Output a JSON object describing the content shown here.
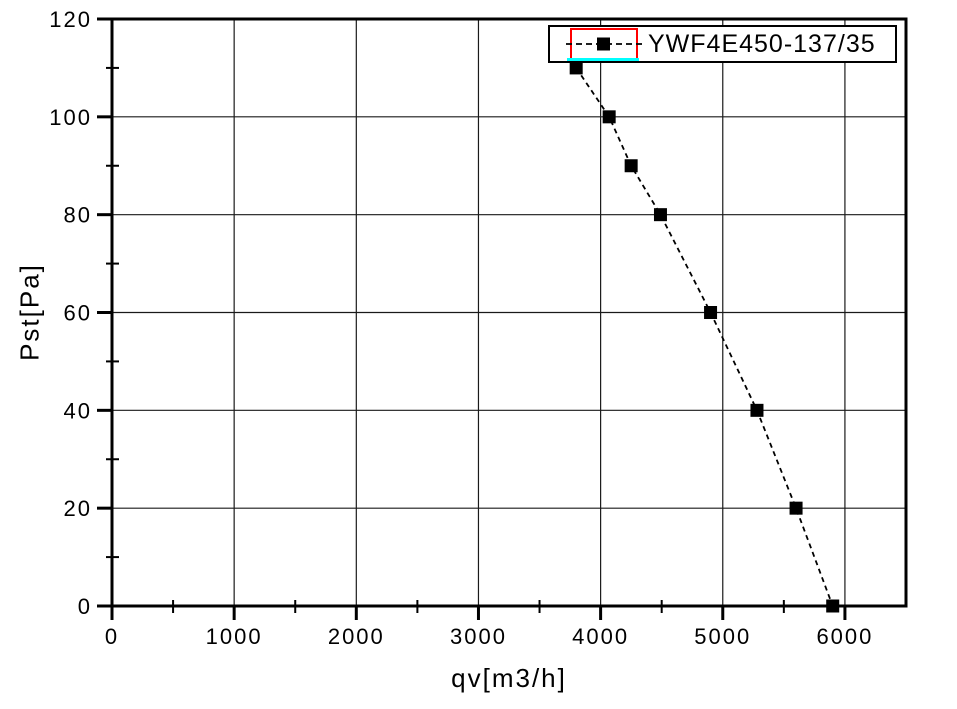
{
  "background_color": "#ffffff",
  "chart_data": {
    "type": "line",
    "title": "",
    "xlabel": "qv[m3/h]",
    "ylabel": "Pst[Pa]",
    "xlim": [
      0,
      6500
    ],
    "ylim": [
      0,
      120
    ],
    "grid": "major-both",
    "x_major_ticks": [
      0,
      1000,
      2000,
      3000,
      4000,
      5000,
      6000
    ],
    "x_tick_labels": [
      "0",
      "1000",
      "2000",
      "3000",
      "4000",
      "5000",
      "6000"
    ],
    "x_minor_ticks": [
      500,
      1500,
      2500,
      3500,
      4500,
      5500
    ],
    "y_major_ticks": [
      0,
      20,
      40,
      60,
      80,
      100,
      120
    ],
    "y_tick_labels": [
      "0",
      "20",
      "40",
      "60",
      "80",
      "100",
      "120"
    ],
    "y_minor_ticks": [
      10,
      30,
      50,
      70,
      90,
      110
    ],
    "series": [
      {
        "name": "YWF4E450-137/35",
        "color": "#000000",
        "marker": "filled-square",
        "marker_color": "#000000",
        "line_style": "dashed",
        "x": [
          3800,
          4070,
          4250,
          4490,
          4900,
          5280,
          5600,
          5900
        ],
        "y": [
          110,
          100,
          90,
          80,
          60,
          40,
          20,
          0
        ]
      }
    ],
    "legend": {
      "position": "top-right",
      "entries": [
        {
          "label": "YWF4E450-137/35",
          "marker": "filled-square",
          "line": "dashed"
        }
      ],
      "box_border_color": "#000000",
      "selection_border_color": "#ff0000",
      "selection_underline_color": "#00ffff"
    }
  }
}
